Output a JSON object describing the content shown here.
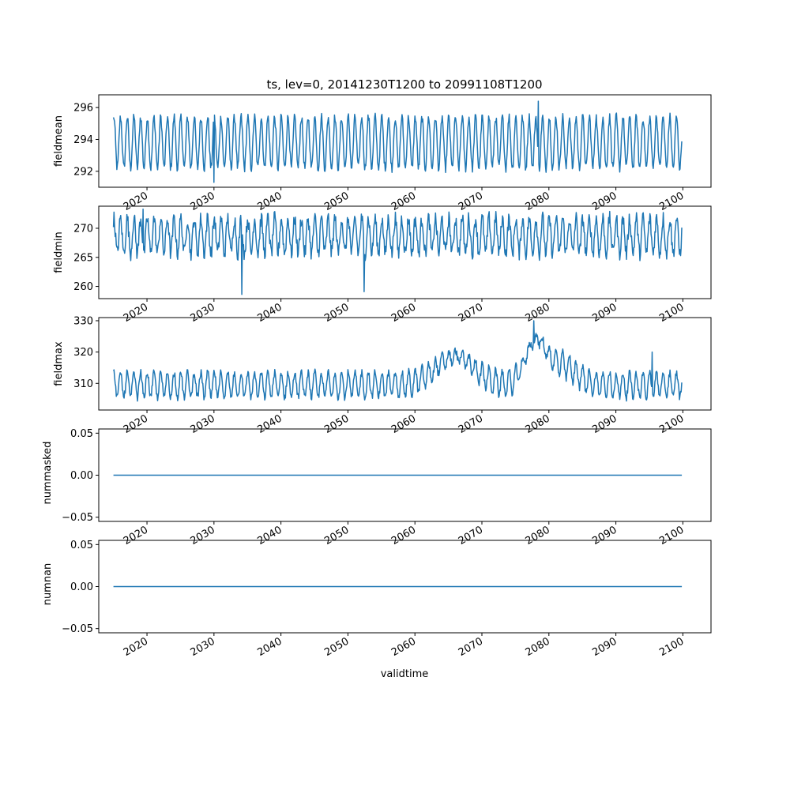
{
  "figure_title": "ts, lev=0, 20141230T1200 to 20991108T1200",
  "colors": {
    "line": "#1f77b4",
    "frame": "#000000",
    "background": "#ffffff"
  },
  "chart_data": [
    {
      "type": "line",
      "ylabel": "fieldmean",
      "xlabel": "",
      "x_range": [
        "2014-12-30",
        "2099-11-08"
      ],
      "xlim": [
        2012.8,
        2104.2
      ],
      "ylim": [
        291.0,
        296.8
      ],
      "yticks": [
        292,
        294,
        296
      ],
      "ytick_labels": [
        "292",
        "294",
        "296"
      ],
      "xticks": [
        2020,
        2030,
        2040,
        2050,
        2060,
        2070,
        2080,
        2090,
        2100
      ],
      "xtick_labels": [
        "2020",
        "2030",
        "2040",
        "2050",
        "2060",
        "2070",
        "2080",
        "2090",
        "2100"
      ],
      "series_shape": {
        "base": 293.8,
        "amplitude": 1.6,
        "noise": 0.3,
        "spike": 0
      },
      "notable_points": [
        {
          "x": "2078-06",
          "y": 296.4
        },
        {
          "x": "2030-01",
          "y": 291.3
        }
      ]
    },
    {
      "type": "line",
      "ylabel": "fieldmin",
      "xlabel": "",
      "x_range": [
        "2014-12-30",
        "2099-11-08"
      ],
      "xlim": [
        2012.8,
        2104.2
      ],
      "ylim": [
        257.9,
        273.8
      ],
      "yticks": [
        260,
        265,
        270
      ],
      "ytick_labels": [
        "260",
        "265",
        "270"
      ],
      "xticks": [
        2020,
        2030,
        2040,
        2050,
        2060,
        2070,
        2080,
        2090,
        2100
      ],
      "xtick_labels": [
        "2020",
        "2030",
        "2040",
        "2050",
        "2060",
        "2070",
        "2080",
        "2090",
        "2100"
      ],
      "series_shape": {
        "base": 268.7,
        "amplitude": 3.0,
        "noise": 1.3,
        "spike": 0
      },
      "notable_points": [
        {
          "x": "2034-03",
          "y": 258.6
        },
        {
          "x": "2052-06",
          "y": 259.1
        },
        {
          "x": "2019-06",
          "y": 273.3
        }
      ]
    },
    {
      "type": "line",
      "ylabel": "fieldmax",
      "xlabel": "",
      "x_range": [
        "2014-12-30",
        "2099-11-08"
      ],
      "xlim": [
        2012.8,
        2104.2
      ],
      "ylim": [
        301.5,
        331.0
      ],
      "yticks": [
        310,
        320,
        330
      ],
      "ytick_labels": [
        "310",
        "320",
        "330"
      ],
      "xticks": [
        2020,
        2030,
        2040,
        2050,
        2060,
        2070,
        2080,
        2090,
        2100
      ],
      "xtick_labels": [
        "2020",
        "2030",
        "2040",
        "2050",
        "2060",
        "2070",
        "2080",
        "2090",
        "2100"
      ],
      "series_shape": {
        "base": 309.5,
        "amplitude": 4.0,
        "noise": 1.2,
        "spike": 1
      },
      "notable_points": [
        {
          "x": "2077-10",
          "y": 330.0
        },
        {
          "x": "2066-06",
          "y": 318.5
        },
        {
          "x": "2095-06",
          "y": 320.0
        }
      ]
    },
    {
      "type": "line",
      "ylabel": "nummasked",
      "xlabel": "",
      "x_range": [
        "2014-12-30",
        "2099-11-08"
      ],
      "xlim": [
        2012.8,
        2104.2
      ],
      "ylim": [
        -0.055,
        0.055
      ],
      "yticks": [
        -0.05,
        0.0,
        0.05
      ],
      "ytick_labels": [
        "−0.05",
        "0.00",
        "0.05"
      ],
      "xticks": [
        2020,
        2030,
        2040,
        2050,
        2060,
        2070,
        2080,
        2090,
        2100
      ],
      "xtick_labels": [
        "2020",
        "2030",
        "2040",
        "2050",
        "2060",
        "2070",
        "2080",
        "2090",
        "2100"
      ],
      "constant_value": 0.0
    },
    {
      "type": "line",
      "ylabel": "numnan",
      "xlabel": "validtime",
      "x_range": [
        "2014-12-30",
        "2099-11-08"
      ],
      "xlim": [
        2012.8,
        2104.2
      ],
      "ylim": [
        -0.055,
        0.055
      ],
      "yticks": [
        -0.05,
        0.0,
        0.05
      ],
      "ytick_labels": [
        "−0.05",
        "0.00",
        "0.05"
      ],
      "xticks": [
        2020,
        2030,
        2040,
        2050,
        2060,
        2070,
        2080,
        2090,
        2100
      ],
      "xtick_labels": [
        "2020",
        "2030",
        "2040",
        "2050",
        "2060",
        "2070",
        "2080",
        "2090",
        "2100"
      ],
      "constant_value": 0.0
    }
  ]
}
